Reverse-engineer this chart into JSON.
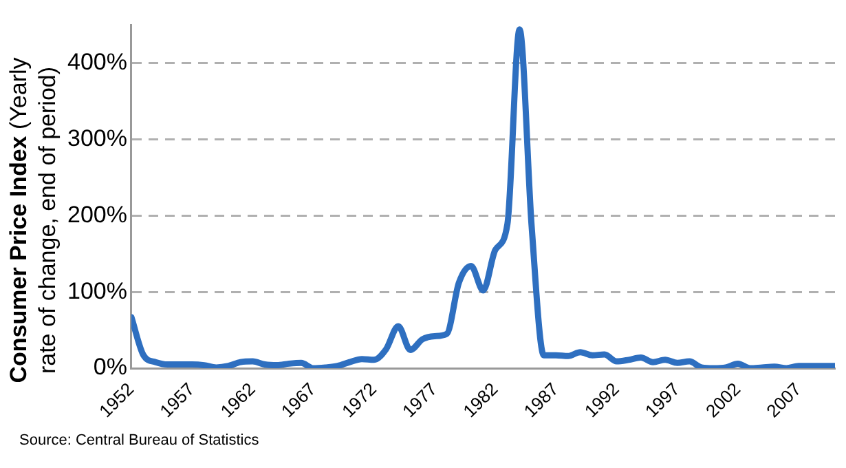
{
  "chart_data": {
    "type": "line",
    "ylabel": "Consumer Price Index (Yearly rate of change, end of period)",
    "annotations": [
      "Source: Central Bureau of Statistics"
    ],
    "x": [
      1952,
      1953,
      1954,
      1955,
      1956,
      1957,
      1958,
      1959,
      1960,
      1961,
      1962,
      1963,
      1964,
      1965,
      1966,
      1967,
      1968,
      1969,
      1970,
      1971,
      1972,
      1973,
      1974,
      1975,
      1976,
      1977,
      1978,
      1979,
      1980,
      1981,
      1982,
      1983,
      1984,
      1985,
      1986,
      1987,
      1988,
      1989,
      1990,
      1991,
      1992,
      1993,
      1994,
      1995,
      1996,
      1997,
      1998,
      1999,
      2000,
      2001,
      2002,
      2003,
      2004,
      2005,
      2006,
      2007,
      2008,
      2009,
      2010
    ],
    "series": [
      {
        "color": "#2e6fc0",
        "values": [
          67,
          17,
          8,
          5,
          5,
          5,
          4,
          1,
          3,
          8,
          9,
          5,
          4,
          6,
          7,
          0,
          1,
          3,
          8,
          12,
          11,
          25,
          55,
          24,
          38,
          42,
          45,
          112,
          134,
          102,
          155,
          189,
          444,
          185,
          17,
          17,
          16,
          21,
          17,
          18,
          9,
          11,
          14,
          8,
          11,
          7,
          9,
          1,
          0,
          1,
          6,
          0,
          1,
          2,
          0,
          3,
          3,
          3,
          3
        ]
      }
    ],
    "xlim": [
      1952,
      2010
    ],
    "xticks": [
      1952,
      1957,
      1962,
      1967,
      1972,
      1977,
      1982,
      1987,
      1992,
      1997,
      2002,
      2007
    ],
    "ylim": [
      0,
      450
    ],
    "yticks": [
      {
        "value": 0,
        "label": "0%"
      },
      {
        "value": 100,
        "label": "100%"
      },
      {
        "value": 200,
        "label": "200%"
      },
      {
        "value": 300,
        "label": "300%"
      },
      {
        "value": 400,
        "label": "400%"
      }
    ],
    "grid": "y",
    "legend": false,
    "marker": "none",
    "line_style": "solid"
  }
}
